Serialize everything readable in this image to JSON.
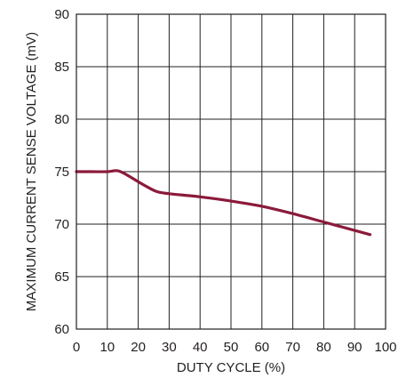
{
  "chart_data": {
    "type": "line",
    "title": "",
    "xlabel": "DUTY CYCLE (%)",
    "ylabel": "MAXIMUM CURRENT SENSE VOLTAGE (mV)",
    "xlim": [
      0,
      100
    ],
    "ylim": [
      60,
      90
    ],
    "x_ticks": [
      0,
      10,
      20,
      30,
      40,
      50,
      60,
      70,
      80,
      90,
      100
    ],
    "y_ticks": [
      60,
      65,
      70,
      75,
      80,
      85,
      90
    ],
    "grid": true,
    "series": [
      {
        "color": "#8b1a3a",
        "x": [
          0,
          5,
          10,
          13,
          15,
          18,
          22,
          26,
          30,
          40,
          50,
          60,
          70,
          80,
          90,
          95
        ],
        "y": [
          75,
          75,
          75,
          75.1,
          74.9,
          74.4,
          73.7,
          73.1,
          72.9,
          72.6,
          72.2,
          71.7,
          71.0,
          70.2,
          69.4,
          69.0
        ]
      }
    ],
    "colors": {
      "grid": "#231f20",
      "text": "#231f20",
      "background": "#ffffff"
    }
  }
}
